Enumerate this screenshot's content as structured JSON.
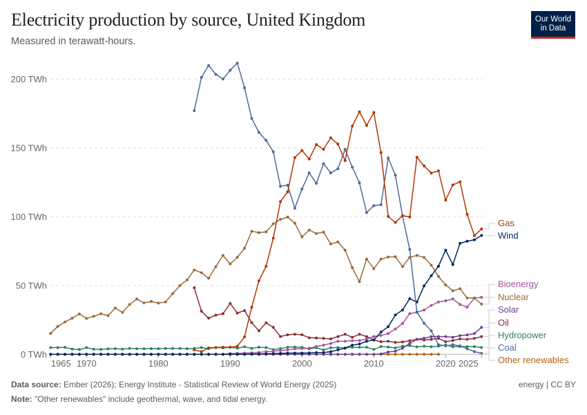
{
  "header": {
    "title": "Electricity production by source, United Kingdom",
    "subtitle": "Measured in terawatt-hours.",
    "logo_text": "Our World in Data"
  },
  "footer": {
    "source_label": "Data source:",
    "source_text": "Ember (2026); Energy Institute - Statistical Review of World Energy (2025)",
    "note_label": "Note:",
    "note_text": "\"Other renewables\" include geothermal, wave, and tidal energy.",
    "license": "energy | CC BY"
  },
  "chart_data": {
    "type": "line",
    "title": "Electricity production by source, United Kingdom",
    "subtitle": "Measured in terawatt-hours.",
    "unit": "TWh",
    "ylim": [
      0,
      215
    ],
    "y_ticks": [
      0,
      50,
      100,
      150,
      200
    ],
    "y_tick_labels": [
      "0 TWh",
      "50 TWh",
      "100 TWh",
      "150 TWh",
      "200 TWh"
    ],
    "x_ticks": [
      1965,
      1970,
      1980,
      1990,
      2000,
      2010,
      2020,
      2025
    ],
    "x_tick_labels": [
      "1965",
      "1970",
      "1980",
      "1990",
      "2000",
      "2010",
      "2020",
      "2025"
    ],
    "grid": "horizontal dashed",
    "legend": "right, inline labels",
    "years": [
      1965,
      1966,
      1967,
      1968,
      1969,
      1970,
      1971,
      1972,
      1973,
      1974,
      1975,
      1976,
      1977,
      1978,
      1979,
      1980,
      1981,
      1982,
      1983,
      1984,
      1985,
      1986,
      1987,
      1988,
      1989,
      1990,
      1991,
      1992,
      1993,
      1994,
      1995,
      1996,
      1997,
      1998,
      1999,
      2000,
      2001,
      2002,
      2003,
      2004,
      2005,
      2006,
      2007,
      2008,
      2009,
      2010,
      2011,
      2012,
      2013,
      2014,
      2015,
      2016,
      2017,
      2018,
      2019,
      2020,
      2021,
      2022,
      2023,
      2024,
      2025
    ],
    "series": [
      {
        "name": "Other renewables",
        "color": "#b16214",
        "values": [
          0,
          0,
          0,
          0,
          0,
          0,
          0,
          0,
          0,
          0,
          0,
          0,
          0,
          0,
          0,
          0,
          0,
          0,
          0,
          0,
          0,
          0,
          0,
          0,
          0,
          0,
          0,
          0,
          0,
          0,
          0,
          0,
          0,
          0,
          0,
          0,
          0,
          0,
          0,
          0,
          0,
          0,
          0,
          0,
          0,
          0,
          0,
          0,
          0,
          0,
          0,
          0,
          0,
          0,
          0,
          null,
          null,
          null,
          null,
          null,
          null
        ]
      },
      {
        "name": "Hydropower",
        "color": "#2c8465",
        "values": [
          4.9,
          4.9,
          5.1,
          3.8,
          3.5,
          4.9,
          3.7,
          3.6,
          4,
          4.1,
          3.8,
          4.3,
          4.1,
          4.1,
          4.2,
          4.1,
          4.3,
          4.3,
          4.3,
          4.1,
          4.3,
          4.9,
          4.2,
          4.9,
          4.7,
          5.2,
          4.5,
          5.5,
          4.3,
          5.2,
          4.9,
          3.4,
          4.1,
          5.2,
          5.3,
          5.1,
          4,
          4.8,
          3.2,
          4.8,
          4.9,
          4.6,
          5.1,
          5.1,
          5.2,
          3.6,
          5.7,
          5.3,
          4.7,
          5.9,
          6.3,
          5.4,
          5.9,
          5.5,
          5.9,
          6.8,
          5.5,
          5.7,
          5.6,
          5.6,
          5
        ]
      },
      {
        "name": "Oil",
        "color": "#883039",
        "values": [
          null,
          null,
          null,
          null,
          null,
          null,
          null,
          null,
          null,
          null,
          null,
          null,
          null,
          null,
          null,
          null,
          null,
          null,
          null,
          null,
          48.4,
          31.3,
          26.3,
          28.5,
          29.5,
          37,
          30,
          31.8,
          23,
          17.1,
          22.9,
          19.6,
          12.9,
          14.2,
          14.6,
          14.2,
          12,
          11.9,
          11.6,
          11.2,
          12.9,
          14.6,
          12.4,
          14.6,
          12.9,
          10.4,
          9.2,
          9.5,
          8.7,
          9,
          9.9,
          10.9,
          10.4,
          10.9,
          11.6,
          9.2,
          10,
          11.2,
          10.9,
          11.6,
          12.9
        ]
      },
      {
        "name": "Bioenergy",
        "color": "#a2559c",
        "values": [
          0,
          0,
          0,
          0,
          0,
          0,
          0,
          0,
          0,
          0,
          0,
          0,
          0,
          0,
          0,
          0,
          0,
          0,
          0,
          0,
          0,
          0,
          0,
          0,
          0,
          0.6,
          0.7,
          0.9,
          1.1,
          1.4,
          2,
          2.2,
          2.8,
          3.2,
          4,
          4.2,
          4.5,
          5.7,
          6.7,
          7.9,
          9.5,
          9.5,
          9.9,
          10,
          11.2,
          12.9,
          13.7,
          15.1,
          18.4,
          22.4,
          29.6,
          30.5,
          32.2,
          35.5,
          38,
          38.9,
          40.2,
          36.3,
          34.3,
          40.9,
          41.4
        ]
      },
      {
        "name": "Solar",
        "color": "#6d3e91",
        "values": [
          0,
          0,
          0,
          0,
          0,
          0,
          0,
          0,
          0,
          0,
          0,
          0,
          0,
          0,
          0,
          0,
          0,
          0,
          0,
          0,
          0,
          0,
          0,
          0,
          0,
          0,
          0,
          0,
          0,
          0,
          0,
          0,
          0,
          0,
          0,
          0,
          0,
          0,
          0,
          0,
          0,
          0,
          0,
          0,
          0,
          0,
          0.3,
          1.7,
          2.3,
          4.5,
          7.9,
          10.9,
          11.7,
          12.9,
          12.9,
          12.9,
          12.4,
          13.6,
          14.1,
          15.1,
          19.6
        ]
      },
      {
        "name": "Nuclear",
        "color": "#9a6b38",
        "values": [
          15.2,
          20.3,
          23.5,
          26.3,
          29.3,
          26.1,
          27.6,
          29.5,
          28.1,
          33.7,
          30.5,
          36.2,
          40.2,
          37.4,
          38.4,
          37.2,
          38,
          44.1,
          49.9,
          54.1,
          61.3,
          59.3,
          55.3,
          63.7,
          71.9,
          65.7,
          70.5,
          77.1,
          89.4,
          88.4,
          89,
          94.8,
          98,
          99.7,
          95.3,
          85.3,
          90.3,
          87.8,
          88.8,
          80.2,
          81.7,
          75.7,
          63,
          52.8,
          69.2,
          62.3,
          69.2,
          70.7,
          70.9,
          63.8,
          70.4,
          71.9,
          70.4,
          64.8,
          56.6,
          50.4,
          46.2,
          47.7,
          40.9,
          40.9,
          36.5
        ]
      },
      {
        "name": "Wind",
        "color": "#00295b",
        "values": [
          0,
          0,
          0,
          0,
          0,
          0,
          0,
          0,
          0,
          0,
          0,
          0,
          0,
          0,
          0,
          0,
          0,
          0,
          0,
          0,
          0,
          0,
          0,
          0,
          0,
          0,
          0,
          0,
          0.2,
          0.3,
          0.4,
          0.5,
          0.7,
          0.9,
          0.9,
          0.9,
          1,
          1.3,
          1.3,
          1.9,
          3.2,
          4.5,
          6.7,
          7.5,
          9.5,
          10.4,
          16.2,
          20.1,
          28.6,
          32.2,
          40.5,
          38,
          49.7,
          57.1,
          64,
          75.7,
          65.2,
          80.6,
          82.2,
          83.2,
          86.4
        ]
      },
      {
        "name": "Coal",
        "color": "#4c6a9c",
        "values": [
          null,
          null,
          null,
          null,
          null,
          null,
          null,
          null,
          null,
          null,
          null,
          null,
          null,
          null,
          null,
          null,
          null,
          null,
          null,
          null,
          177,
          201.3,
          209.9,
          203.4,
          200,
          206.4,
          211.6,
          193.6,
          171.4,
          161.3,
          155.5,
          147.2,
          122.1,
          122.9,
          106.2,
          120.1,
          131.8,
          124.3,
          138.5,
          131.8,
          134.8,
          148.9,
          136,
          124.6,
          103,
          108,
          108.7,
          142.7,
          130.2,
          100.5,
          76.2,
          30.8,
          22.6,
          17.1,
          7,
          6.2,
          7,
          6.2,
          4,
          2,
          0.7
        ]
      },
      {
        "name": "Gas",
        "color": "#b13507",
        "values": [
          null,
          null,
          null,
          null,
          null,
          null,
          null,
          null,
          null,
          null,
          null,
          null,
          null,
          null,
          null,
          null,
          null,
          null,
          null,
          null,
          3.2,
          2,
          4.7,
          5,
          5.2,
          5.2,
          5.9,
          12.7,
          34.2,
          53.4,
          64,
          84.3,
          111,
          118,
          143,
          148.1,
          141.9,
          152.4,
          148.9,
          157.3,
          152.8,
          140.7,
          165.8,
          176.2,
          166.3,
          175.7,
          146.6,
          100.2,
          95.8,
          100.8,
          99.8,
          143.2,
          136.9,
          131.7,
          133.3,
          112.1,
          123.1,
          125.3,
          101.7,
          86.3,
          91.1
        ]
      }
    ]
  }
}
